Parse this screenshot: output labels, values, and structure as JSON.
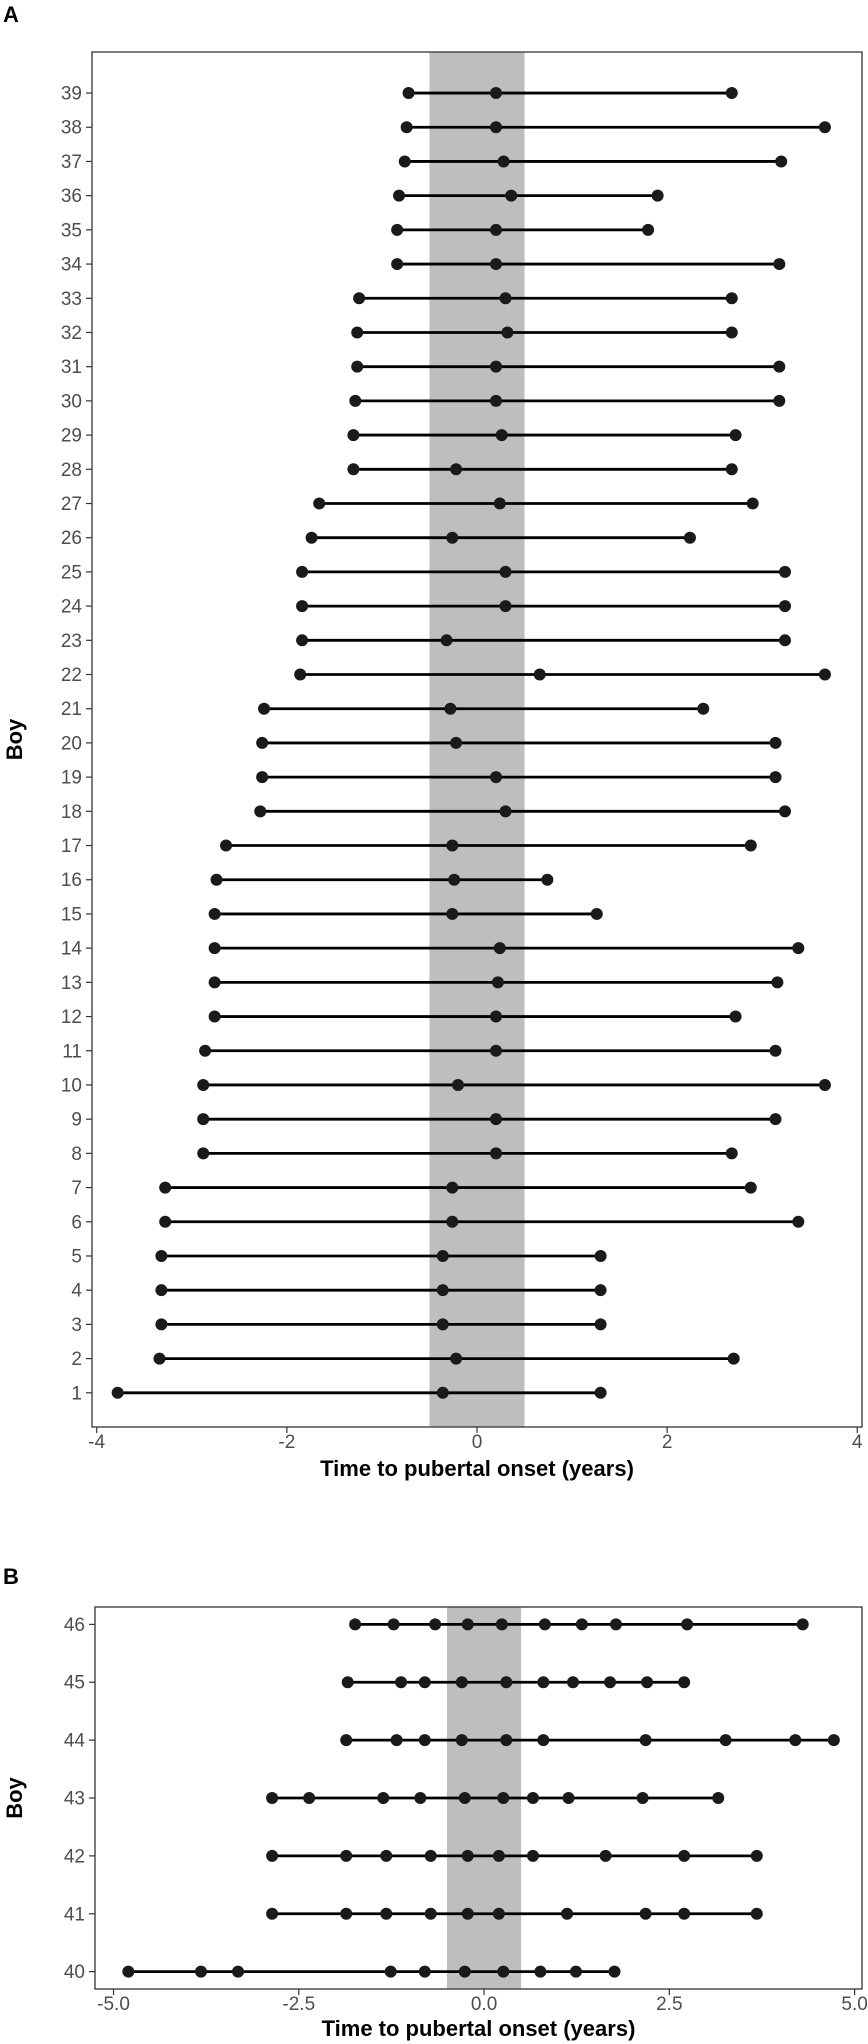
{
  "chart_data": [
    {
      "panel": "A",
      "type": "scatter",
      "style": "subject timeline (line from first to last observation, dots at each observation)",
      "xlabel": "Time to pubertal onset (years)",
      "ylabel": "Boy",
      "xlim": [
        -4.05,
        4.05
      ],
      "ylim": [
        0,
        40.2
      ],
      "xticks": [
        -4,
        -2,
        0,
        2,
        4
      ],
      "xtick_labels": [
        "-4",
        "-2",
        "0",
        "2",
        "4"
      ],
      "shaded_band": [
        -0.5,
        0.5
      ],
      "grid": false,
      "colors": {
        "band": "#bebebe",
        "points": "#1a1a1a",
        "line": "#000000"
      },
      "series": [
        {
          "boy": "1",
          "x": [
            -3.78,
            -0.36,
            1.3
          ]
        },
        {
          "boy": "2",
          "x": [
            -3.34,
            -0.22,
            2.7
          ]
        },
        {
          "boy": "3",
          "x": [
            -3.32,
            -0.36,
            1.3
          ]
        },
        {
          "boy": "4",
          "x": [
            -3.32,
            -0.36,
            1.3
          ]
        },
        {
          "boy": "5",
          "x": [
            -3.32,
            -0.36,
            1.3
          ]
        },
        {
          "boy": "6",
          "x": [
            -3.28,
            -0.26,
            3.38
          ]
        },
        {
          "boy": "7",
          "x": [
            -3.28,
            -0.26,
            2.88
          ]
        },
        {
          "boy": "8",
          "x": [
            -2.88,
            0.2,
            2.68
          ]
        },
        {
          "boy": "9",
          "x": [
            -2.88,
            0.2,
            3.14
          ]
        },
        {
          "boy": "10",
          "x": [
            -2.88,
            -0.2,
            3.66
          ]
        },
        {
          "boy": "11",
          "x": [
            -2.86,
            0.2,
            3.14
          ]
        },
        {
          "boy": "12",
          "x": [
            -2.76,
            0.2,
            2.72
          ]
        },
        {
          "boy": "13",
          "x": [
            -2.76,
            0.22,
            3.16
          ]
        },
        {
          "boy": "14",
          "x": [
            -2.76,
            0.24,
            3.38
          ]
        },
        {
          "boy": "15",
          "x": [
            -2.76,
            -0.26,
            1.26
          ]
        },
        {
          "boy": "16",
          "x": [
            -2.74,
            -0.24,
            0.74
          ]
        },
        {
          "boy": "17",
          "x": [
            -2.64,
            -0.26,
            2.88
          ]
        },
        {
          "boy": "18",
          "x": [
            -2.28,
            0.3,
            3.24
          ]
        },
        {
          "boy": "19",
          "x": [
            -2.26,
            0.2,
            3.14
          ]
        },
        {
          "boy": "20",
          "x": [
            -2.26,
            -0.22,
            3.14
          ]
        },
        {
          "boy": "21",
          "x": [
            -2.24,
            -0.28,
            2.38
          ]
        },
        {
          "boy": "22",
          "x": [
            -1.86,
            0.66,
            3.66
          ]
        },
        {
          "boy": "23",
          "x": [
            -1.84,
            -0.32,
            3.24
          ]
        },
        {
          "boy": "24",
          "x": [
            -1.84,
            0.3,
            3.24
          ]
        },
        {
          "boy": "25",
          "x": [
            -1.84,
            0.3,
            3.24
          ]
        },
        {
          "boy": "26",
          "x": [
            -1.74,
            -0.26,
            2.24
          ]
        },
        {
          "boy": "27",
          "x": [
            -1.66,
            0.24,
            2.9
          ]
        },
        {
          "boy": "28",
          "x": [
            -1.3,
            -0.22,
            2.68
          ]
        },
        {
          "boy": "29",
          "x": [
            -1.3,
            0.26,
            2.72
          ]
        },
        {
          "boy": "30",
          "x": [
            -1.28,
            0.2,
            3.18
          ]
        },
        {
          "boy": "31",
          "x": [
            -1.26,
            0.2,
            3.18
          ]
        },
        {
          "boy": "32",
          "x": [
            -1.26,
            0.32,
            2.68
          ]
        },
        {
          "boy": "33",
          "x": [
            -1.24,
            0.3,
            2.68
          ]
        },
        {
          "boy": "34",
          "x": [
            -0.84,
            0.2,
            3.18
          ]
        },
        {
          "boy": "35",
          "x": [
            -0.84,
            0.2,
            1.8
          ]
        },
        {
          "boy": "36",
          "x": [
            -0.82,
            0.36,
            1.9
          ]
        },
        {
          "boy": "37",
          "x": [
            -0.76,
            0.28,
            3.2
          ]
        },
        {
          "boy": "38",
          "x": [
            -0.74,
            0.2,
            3.66
          ]
        },
        {
          "boy": "39",
          "x": [
            -0.72,
            0.2,
            2.68
          ]
        }
      ]
    },
    {
      "panel": "B",
      "type": "scatter",
      "style": "subject timeline (line from first to last observation, dots at each observation)",
      "xlabel": "Time to pubertal onset (years)",
      "ylabel": "Boy",
      "xlim": [
        -5.25,
        5.1
      ],
      "ylim": [
        0.7,
        7.3
      ],
      "xticks": [
        -5.0,
        -2.5,
        0.0,
        2.5,
        5.0
      ],
      "xtick_labels": [
        "-5.0",
        "-2.5",
        "0.0",
        "2.5",
        "5.0"
      ],
      "shaded_band": [
        -0.5,
        0.5
      ],
      "grid": false,
      "colors": {
        "band": "#bebebe",
        "points": "#1a1a1a",
        "line": "#000000"
      },
      "series": [
        {
          "boy": "40",
          "x": [
            -4.8,
            -3.82,
            -3.32,
            -1.26,
            -0.8,
            -0.26,
            0.26,
            0.76,
            1.24,
            1.76
          ]
        },
        {
          "boy": "41",
          "x": [
            -2.86,
            -1.86,
            -1.32,
            -0.72,
            -0.22,
            0.2,
            1.12,
            2.18,
            2.7,
            3.68
          ]
        },
        {
          "boy": "42",
          "x": [
            -2.86,
            -1.86,
            -1.32,
            -0.72,
            -0.22,
            0.2,
            0.66,
            1.64,
            2.7,
            3.68
          ]
        },
        {
          "boy": "43",
          "x": [
            -2.86,
            -2.36,
            -1.36,
            -0.86,
            -0.26,
            0.26,
            0.66,
            1.14,
            2.14,
            3.16
          ]
        },
        {
          "boy": "44",
          "x": [
            -1.86,
            -1.18,
            -0.8,
            -0.3,
            0.3,
            0.8,
            2.18,
            3.26,
            4.2,
            4.72
          ]
        },
        {
          "boy": "45",
          "x": [
            -1.84,
            -1.12,
            -0.8,
            -0.3,
            0.3,
            0.8,
            1.2,
            1.7,
            2.2,
            2.7
          ]
        },
        {
          "boy": "46",
          "x": [
            -1.74,
            -1.22,
            -0.66,
            -0.22,
            0.24,
            0.82,
            1.32,
            1.78,
            2.74,
            4.3
          ]
        }
      ]
    }
  ]
}
